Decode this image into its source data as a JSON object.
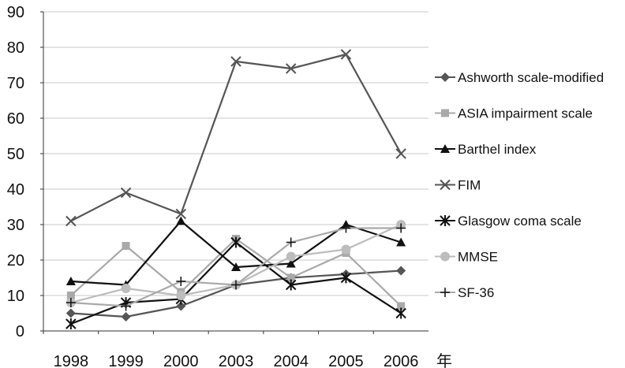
{
  "chart_data": {
    "type": "line",
    "categories": [
      "1998",
      "1999",
      "2000",
      "2003",
      "2004",
      "2005",
      "2006"
    ],
    "x_unit_label": "年",
    "ylim": [
      0,
      90
    ],
    "yticks": [
      0,
      10,
      20,
      30,
      40,
      50,
      60,
      70,
      80,
      90
    ],
    "grid": "horizontal",
    "legend_position": "right",
    "series": [
      {
        "name": "Ashworth scale-modified",
        "color": "#555555",
        "marker": "diamond",
        "values": [
          5,
          4,
          7,
          13,
          15,
          16,
          17
        ]
      },
      {
        "name": "ASIA impairment scale",
        "color": "#a9a9a9",
        "marker": "square",
        "values": [
          10,
          24,
          11,
          26,
          15,
          22,
          7
        ]
      },
      {
        "name": "Barthel index",
        "color": "#111111",
        "marker": "triangle",
        "values": [
          14,
          13,
          31,
          18,
          19,
          30,
          25
        ]
      },
      {
        "name": "FIM",
        "color": "#555555",
        "marker": "x",
        "values": [
          31,
          39,
          33,
          76,
          74,
          78,
          50
        ]
      },
      {
        "name": "Glasgow coma scale",
        "color": "#111111",
        "marker": "star",
        "values": [
          2,
          8,
          9,
          25,
          13,
          15,
          5
        ]
      },
      {
        "name": "MMSE",
        "color": "#bdbdbd",
        "marker": "circle",
        "values": [
          8,
          12,
          10,
          13,
          21,
          23,
          30
        ]
      },
      {
        "name": "SF-36",
        "color": "#aaaaaa",
        "marker": "plus",
        "values": [
          8,
          7,
          14,
          13,
          25,
          29,
          29
        ]
      }
    ]
  }
}
